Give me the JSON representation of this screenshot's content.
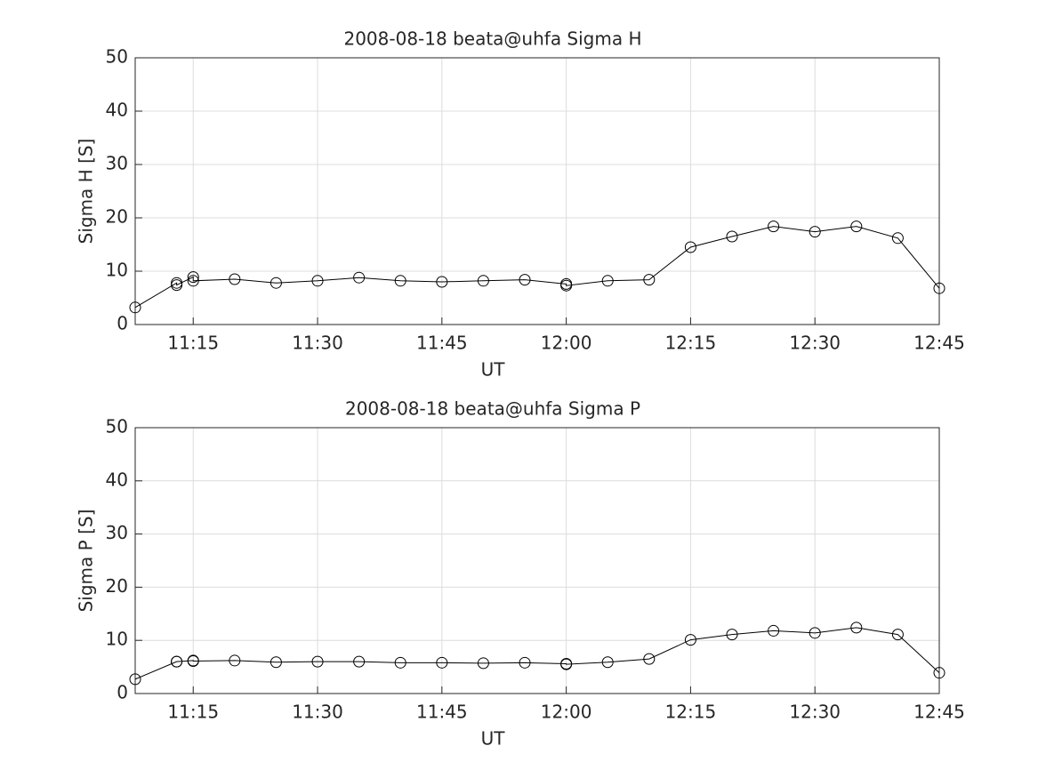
{
  "chart_data": [
    {
      "type": "line",
      "title": "2008-08-18  beata@uhfa Sigma H",
      "x_label": "UT",
      "y_label": "Sigma H [S]",
      "x": [
        "11:08",
        "11:13",
        "11:13",
        "11:15",
        "11:15",
        "11:20",
        "11:25",
        "11:30",
        "11:35",
        "11:40",
        "11:45",
        "11:50",
        "11:55",
        "12:00",
        "12:00",
        "12:05",
        "12:10",
        "12:15",
        "12:20",
        "12:25",
        "12:30",
        "12:35",
        "12:40",
        "12:45"
      ],
      "values": [
        3.2,
        7.8,
        7.4,
        8.9,
        8.2,
        8.5,
        7.8,
        8.2,
        8.8,
        8.2,
        8.0,
        8.2,
        8.4,
        7.6,
        7.3,
        8.2,
        8.4,
        14.5,
        16.5,
        18.4,
        17.4,
        18.4,
        16.2,
        6.8
      ],
      "color": "#000000",
      "marker": "circle",
      "xlim": [
        "11:08",
        "12:45"
      ],
      "xticks": [
        "11:15",
        "11:30",
        "11:45",
        "12:00",
        "12:15",
        "12:30",
        "12:45"
      ],
      "ylim": [
        0,
        50
      ],
      "yticks": [
        0,
        10,
        20,
        30,
        40,
        50
      ],
      "grid": true
    },
    {
      "type": "line",
      "title": "2008-08-18  beata@uhfa Sigma P",
      "x_label": "UT",
      "y_label": "Sigma P [S]",
      "x": [
        "11:08",
        "11:13",
        "11:13",
        "11:15",
        "11:15",
        "11:20",
        "11:25",
        "11:30",
        "11:35",
        "11:40",
        "11:45",
        "11:50",
        "11:55",
        "12:00",
        "12:00",
        "12:05",
        "12:10",
        "12:15",
        "12:20",
        "12:25",
        "12:30",
        "12:35",
        "12:40",
        "12:45"
      ],
      "values": [
        2.7,
        6.0,
        6.0,
        6.2,
        6.1,
        6.2,
        5.9,
        6.0,
        6.0,
        5.8,
        5.8,
        5.7,
        5.8,
        5.6,
        5.5,
        5.9,
        6.5,
        10.1,
        11.1,
        11.8,
        11.4,
        12.4,
        11.1,
        3.9
      ],
      "color": "#000000",
      "marker": "circle",
      "xlim": [
        "11:08",
        "12:45"
      ],
      "xticks": [
        "11:15",
        "11:30",
        "11:45",
        "12:00",
        "12:15",
        "12:30",
        "12:45"
      ],
      "ylim": [
        0,
        50
      ],
      "yticks": [
        0,
        10,
        20,
        30,
        40,
        50
      ],
      "grid": true
    }
  ]
}
